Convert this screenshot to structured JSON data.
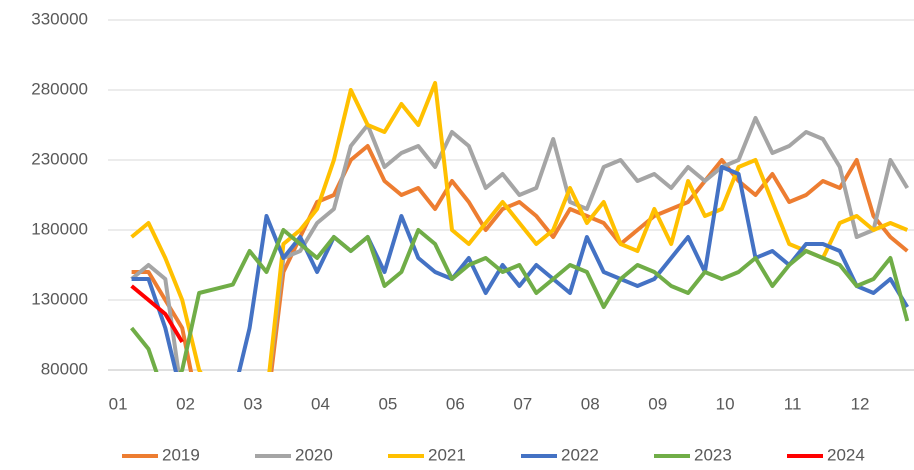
{
  "chart_data": {
    "type": "line",
    "x": [
      1.2,
      1.45,
      1.7,
      1.95,
      2.2,
      2.45,
      2.7,
      2.95,
      3.2,
      3.45,
      3.7,
      3.95,
      4.2,
      4.45,
      4.7,
      4.95,
      5.2,
      5.45,
      5.7,
      5.95,
      6.2,
      6.45,
      6.7,
      6.95,
      7.2,
      7.45,
      7.7,
      7.95,
      8.2,
      8.45,
      8.7,
      8.95,
      9.2,
      9.45,
      9.7,
      9.95,
      10.2,
      10.45,
      10.7,
      10.95,
      11.2,
      11.45,
      11.7,
      11.95,
      12.2,
      12.45,
      12.7
    ],
    "series": [
      {
        "name": "2019",
        "color": "#ED7D31",
        "values": [
          150000,
          150000,
          130000,
          110000,
          50000,
          null,
          null,
          null,
          50000,
          150000,
          175000,
          200000,
          205000,
          230000,
          240000,
          215000,
          205000,
          210000,
          195000,
          215000,
          200000,
          180000,
          195000,
          200000,
          190000,
          175000,
          195000,
          190000,
          185000,
          170000,
          180000,
          190000,
          195000,
          200000,
          215000,
          230000,
          215000,
          205000,
          220000,
          200000,
          205000,
          215000,
          210000,
          230000,
          190000,
          175000,
          165000
        ]
      },
      {
        "name": "2020",
        "color": "#A5A5A5",
        "values": [
          145000,
          155000,
          145000,
          60000,
          null,
          null,
          null,
          null,
          60000,
          160000,
          165000,
          185000,
          195000,
          240000,
          255000,
          225000,
          235000,
          240000,
          225000,
          250000,
          240000,
          210000,
          220000,
          205000,
          210000,
          245000,
          200000,
          195000,
          225000,
          230000,
          215000,
          220000,
          210000,
          225000,
          215000,
          225000,
          230000,
          260000,
          235000,
          240000,
          250000,
          245000,
          225000,
          175000,
          180000,
          230000,
          210000
        ]
      },
      {
        "name": "2021",
        "color": "#FFC000",
        "values": [
          175000,
          185000,
          160000,
          130000,
          80000,
          60000,
          null,
          null,
          60000,
          170000,
          180000,
          195000,
          230000,
          280000,
          255000,
          250000,
          270000,
          255000,
          285000,
          180000,
          170000,
          185000,
          200000,
          185000,
          170000,
          180000,
          210000,
          185000,
          200000,
          170000,
          165000,
          195000,
          170000,
          215000,
          190000,
          195000,
          225000,
          230000,
          200000,
          170000,
          165000,
          160000,
          185000,
          190000,
          180000,
          185000,
          180000
        ]
      },
      {
        "name": "2022",
        "color": "#4472C4",
        "values": [
          145000,
          145000,
          110000,
          60000,
          null,
          null,
          60000,
          110000,
          190000,
          160000,
          175000,
          150000,
          175000,
          165000,
          175000,
          150000,
          190000,
          160000,
          150000,
          145000,
          160000,
          135000,
          155000,
          140000,
          155000,
          145000,
          135000,
          175000,
          150000,
          145000,
          140000,
          145000,
          160000,
          175000,
          150000,
          225000,
          220000,
          160000,
          165000,
          155000,
          170000,
          170000,
          165000,
          140000,
          135000,
          145000,
          125000
        ]
      },
      {
        "name": "2023",
        "color": "#70AD47",
        "values": [
          110000,
          95000,
          60000,
          80000,
          135000,
          138000,
          141000,
          165000,
          150000,
          180000,
          170000,
          160000,
          175000,
          165000,
          175000,
          140000,
          150000,
          180000,
          170000,
          145000,
          155000,
          160000,
          150000,
          155000,
          135000,
          145000,
          155000,
          150000,
          125000,
          145000,
          155000,
          150000,
          140000,
          135000,
          150000,
          145000,
          150000,
          160000,
          140000,
          155000,
          165000,
          160000,
          155000,
          140000,
          145000,
          160000,
          115000
        ]
      },
      {
        "name": "2024",
        "color": "#FF0000",
        "values": [
          140000,
          130000,
          120000,
          100000,
          null,
          null,
          null,
          null,
          null,
          null,
          null,
          null,
          null,
          null,
          null,
          null,
          null,
          null,
          null,
          null,
          null,
          null,
          null,
          null,
          null,
          null,
          null,
          null,
          null,
          null,
          null,
          null,
          null,
          null,
          null,
          null,
          null,
          null,
          null,
          null,
          null,
          null,
          null,
          null,
          null,
          null,
          null
        ]
      }
    ],
    "xlim": [
      0.85,
      12.8
    ],
    "xticks": [
      {
        "value": 1,
        "label": "01"
      },
      {
        "value": 2,
        "label": "02"
      },
      {
        "value": 3,
        "label": "03"
      },
      {
        "value": 4,
        "label": "04"
      },
      {
        "value": 5,
        "label": "05"
      },
      {
        "value": 6,
        "label": "06"
      },
      {
        "value": 7,
        "label": "07"
      },
      {
        "value": 8,
        "label": "08"
      },
      {
        "value": 9,
        "label": "09"
      },
      {
        "value": 10,
        "label": "10"
      },
      {
        "value": 11,
        "label": "11"
      },
      {
        "value": 12,
        "label": "12"
      }
    ],
    "ylim": [
      80000,
      330000
    ],
    "yticks": [
      80000,
      130000,
      180000,
      230000,
      280000,
      330000
    ],
    "grid": true,
    "legend": "bottom"
  }
}
